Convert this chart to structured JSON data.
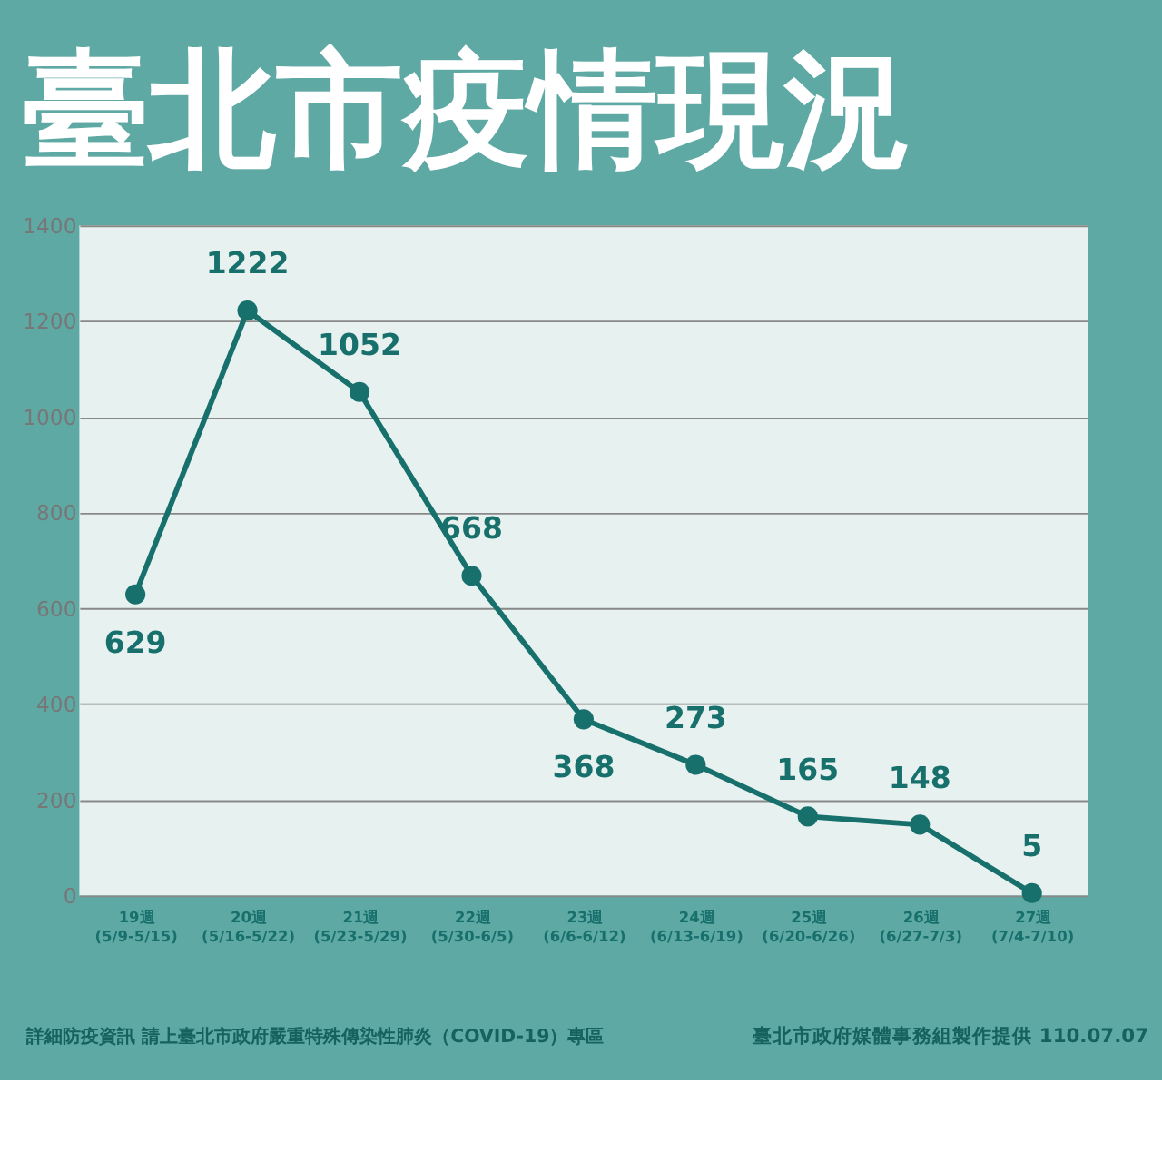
{
  "chart_data": {
    "type": "line",
    "title": "臺北市疫情現況",
    "categories": [
      "19週\n(5/9-5/15)",
      "20週\n(5/16-5/22)",
      "21週\n(5/23-5/29)",
      "22週\n(5/30-6/5)",
      "23週\n(6/6-6/12)",
      "24週\n(6/13-6/19)",
      "25週\n(6/20-6/26)",
      "26週\n(6/27-7/3)",
      "27週\n(7/4-7/10)"
    ],
    "series": [
      {
        "color": "#17706b",
        "values": [
          629,
          1222,
          1052,
          668,
          368,
          273,
          165,
          148,
          5
        ]
      }
    ],
    "ylim": [
      0,
      1400
    ],
    "yticks": [
      0,
      200,
      400,
      600,
      800,
      1000,
      1200,
      1400
    ],
    "grid": "y",
    "marker": "circle",
    "line_style": "solid",
    "data_labels": true,
    "annotations": [
      "詳細防疫資訊 請上臺北市政府嚴重特殊傳染性肺炎（COVID-19）專區",
      "臺北市政府媒體事務組製作提供 110.07.07"
    ]
  }
}
